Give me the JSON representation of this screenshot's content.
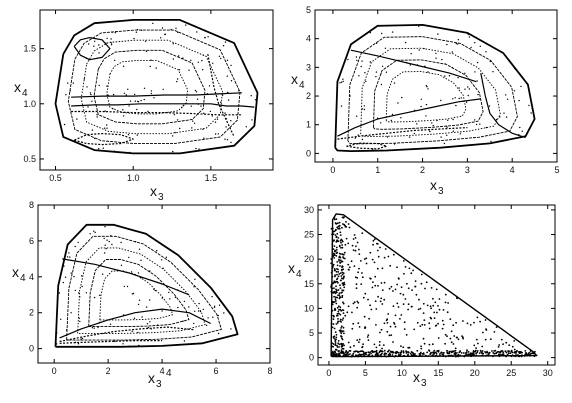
{
  "chart_data": [
    {
      "type": "scatter",
      "panel": "top-left",
      "title": "",
      "xlabel": "x",
      "xlabel_sub": "3",
      "ylabel": "x",
      "ylabel_sub": "4",
      "xlim": [
        0.4,
        1.9
      ],
      "ylim": [
        0.4,
        1.85
      ],
      "xticks": [
        0.5,
        1.0,
        1.5
      ],
      "xtick_labels": [
        "0.5",
        "1.0",
        "1.5"
      ],
      "yticks": [
        0.5,
        1.0,
        1.5
      ],
      "ytick_labels": [
        "0.5",
        "1.0",
        "1.5"
      ],
      "grid": false,
      "boundary_x": [
        0.55,
        0.62,
        0.75,
        1.0,
        1.3,
        1.65,
        1.8,
        1.78,
        1.65,
        1.3,
        1.0,
        0.75,
        0.55,
        0.5,
        0.55
      ],
      "boundary_y": [
        1.45,
        1.62,
        1.73,
        1.76,
        1.76,
        1.55,
        1.1,
        0.8,
        0.62,
        0.55,
        0.55,
        0.58,
        0.7,
        1.0,
        1.45
      ],
      "series": [
        {
          "x": [
            0.6,
            0.75,
            0.9,
            1.05,
            1.2,
            1.35,
            1.5,
            1.6,
            1.7,
            1.78
          ],
          "y": [
            0.98,
            0.99,
            0.99,
            1.0,
            1.0,
            1.0,
            1.0,
            0.98,
            0.98,
            0.97
          ]
        },
        {
          "x": [
            0.6,
            0.8,
            1.0,
            1.2,
            1.4,
            1.55,
            1.7
          ],
          "y": [
            0.93,
            0.93,
            0.92,
            0.92,
            0.91,
            0.9,
            0.9
          ]
        },
        {
          "x": [
            0.6,
            0.8,
            1.0,
            1.2,
            1.4,
            1.55,
            1.7
          ],
          "y": [
            1.06,
            1.07,
            1.07,
            1.08,
            1.08,
            1.09,
            1.1
          ]
        },
        {
          "x": [
            0.62,
            0.7,
            0.8,
            0.92,
            1.0,
            0.92,
            0.8,
            0.7,
            0.62
          ],
          "y": [
            0.67,
            0.64,
            0.63,
            0.64,
            0.68,
            0.72,
            0.73,
            0.72,
            0.67
          ]
        },
        {
          "x": [
            0.62,
            0.66,
            0.72,
            0.8,
            0.85,
            0.8,
            0.72,
            0.66,
            0.62
          ],
          "y": [
            1.52,
            1.58,
            1.6,
            1.58,
            1.5,
            1.42,
            1.4,
            1.44,
            1.52
          ]
        },
        {
          "x": [
            1.48,
            1.5,
            1.52,
            1.55,
            1.6,
            1.65
          ],
          "y": [
            1.45,
            1.3,
            1.15,
            1.0,
            0.85,
            0.7
          ]
        }
      ]
    },
    {
      "type": "scatter",
      "panel": "top-right",
      "title": "",
      "xlabel": "x",
      "xlabel_sub": "3",
      "ylabel": "x",
      "ylabel_sub": "4",
      "xlim": [
        -0.4,
        5.0
      ],
      "ylim": [
        -0.3,
        5.0
      ],
      "xticks": [
        0,
        1,
        2,
        3,
        4,
        5
      ],
      "xtick_labels": [
        "0",
        "1",
        "2",
        "3",
        "4",
        "5"
      ],
      "yticks": [
        0,
        1,
        2,
        3,
        4,
        5
      ],
      "ytick_labels": [
        "0",
        "1",
        "2",
        "3",
        "4",
        "5"
      ],
      "grid": false,
      "boundary_x": [
        0.05,
        0.1,
        0.4,
        1.0,
        2.0,
        3.0,
        3.8,
        4.35,
        4.5,
        4.3,
        3.5,
        2.4,
        1.2,
        0.4,
        0.1,
        0.05
      ],
      "boundary_y": [
        0.2,
        2.5,
        3.8,
        4.45,
        4.48,
        4.2,
        3.5,
        2.4,
        1.2,
        0.6,
        0.35,
        0.2,
        0.1,
        0.08,
        0.1,
        0.2
      ],
      "series": [
        {
          "x": [
            0.1,
            0.5,
            1.0,
            1.6,
            2.2,
            2.8,
            3.3
          ],
          "y": [
            0.6,
            0.9,
            1.2,
            1.4,
            1.6,
            1.8,
            1.9
          ]
        },
        {
          "x": [
            0.1,
            0.6,
            1.2,
            1.8,
            2.4,
            3.0
          ],
          "y": [
            0.5,
            0.6,
            0.7,
            0.8,
            0.85,
            0.9
          ]
        },
        {
          "x": [
            0.4,
            1.0,
            1.8,
            2.6,
            3.2
          ],
          "y": [
            3.6,
            3.4,
            3.1,
            2.8,
            2.5
          ]
        },
        {
          "x": [
            0.3,
            0.6,
            1.0,
            1.2,
            1.0,
            0.6,
            0.3
          ],
          "y": [
            0.25,
            0.18,
            0.16,
            0.25,
            0.34,
            0.36,
            0.25
          ]
        },
        {
          "x": [
            3.3,
            3.4,
            3.5,
            3.7,
            4.0,
            4.3
          ],
          "y": [
            2.8,
            2.0,
            1.4,
            1.0,
            0.7,
            0.55
          ]
        }
      ]
    },
    {
      "type": "scatter",
      "panel": "bottom-left",
      "title": "",
      "xlabel": "x",
      "xlabel_sub": "3",
      "ylabel": "x",
      "ylabel_sub": "4",
      "annotations": [
        "4"
      ],
      "xlim": [
        -0.6,
        8.0
      ],
      "ylim": [
        -0.8,
        8.0
      ],
      "xticks": [
        0,
        2,
        4,
        6,
        8
      ],
      "xtick_labels": [
        "0",
        "2",
        "4",
        "6",
        "8"
      ],
      "yticks": [
        0,
        2,
        4,
        6,
        8
      ],
      "ytick_labels": [
        "0",
        "2",
        "4",
        "6",
        "8"
      ],
      "grid": false,
      "boundary_x": [
        0.05,
        0.15,
        0.5,
        1.2,
        2.2,
        3.4,
        4.6,
        5.8,
        6.6,
        6.8,
        5.5,
        4.0,
        2.5,
        1.0,
        0.2,
        0.05
      ],
      "boundary_y": [
        0.1,
        3.5,
        5.8,
        6.9,
        6.9,
        6.4,
        5.2,
        3.4,
        1.8,
        0.8,
        0.3,
        0.15,
        0.1,
        0.1,
        0.1,
        0.1
      ],
      "series": [
        {
          "x": [
            0.2,
            1.0,
            2.0,
            3.0,
            4.0,
            5.0,
            5.8
          ],
          "y": [
            0.6,
            1.1,
            1.6,
            2.0,
            2.2,
            2.0,
            1.4
          ]
        },
        {
          "x": [
            0.2,
            1.2,
            2.2,
            3.2,
            4.2,
            5.2
          ],
          "y": [
            0.4,
            0.7,
            0.95,
            1.1,
            1.2,
            1.05
          ]
        },
        {
          "x": [
            0.3,
            1.5,
            2.8,
            4.0,
            5.0
          ],
          "y": [
            5.0,
            4.7,
            4.2,
            3.6,
            3.0
          ]
        },
        {
          "x": [
            0.2,
            1.0,
            2.0,
            3.0,
            4.0
          ],
          "y": [
            0.3,
            0.35,
            0.4,
            0.45,
            0.45
          ]
        }
      ]
    },
    {
      "type": "scatter",
      "panel": "bottom-right",
      "title": "",
      "xlabel": "x",
      "xlabel_sub": "3",
      "ylabel": "x",
      "ylabel_sub": "4",
      "xlim": [
        -1.5,
        31.0
      ],
      "ylim": [
        -1.5,
        31.0
      ],
      "xticks": [
        0,
        5,
        10,
        15,
        20,
        25,
        30
      ],
      "xtick_labels": [
        "0",
        "5",
        "10",
        "15",
        "20",
        "25",
        "30"
      ],
      "yticks": [
        0,
        5,
        10,
        15,
        20,
        25,
        30
      ],
      "ytick_labels": [
        "0",
        "5",
        "10",
        "15",
        "20",
        "25",
        "30"
      ],
      "grid": false,
      "boundary_x": [
        0.3,
        0.5,
        1.0,
        2.0,
        28.0,
        28.5,
        2.0,
        0.5,
        0.3
      ],
      "boundary_y": [
        0.3,
        28.0,
        29.2,
        29.0,
        1.2,
        0.4,
        0.2,
        0.2,
        0.3
      ],
      "series": []
    }
  ]
}
